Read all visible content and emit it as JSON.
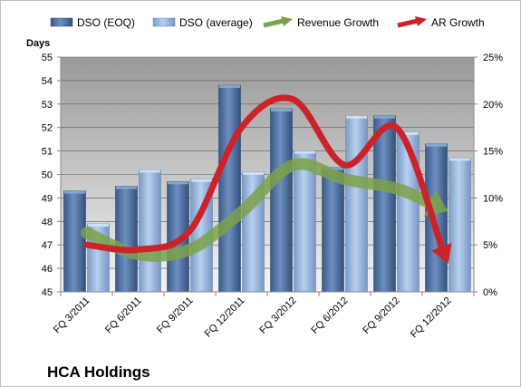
{
  "chart_data": {
    "type": "bar",
    "title": "HCA Holdings",
    "ylabel": "Days",
    "ylim": [
      45,
      55
    ],
    "y2lim": [
      0,
      25
    ],
    "y2_unit": "%",
    "grid": true,
    "legend_placement": "top",
    "categories": [
      "FQ 3/2011",
      "FQ 6/2011",
      "FQ 9/2011",
      "FQ 12/2011",
      "FQ 3/2012",
      "FQ 6/2012",
      "FQ 9/2012",
      "FQ 12/2012"
    ],
    "series": [
      {
        "name": "DSO (EOQ)",
        "type": "bar",
        "axis": "left",
        "color": "#4a6a9a",
        "values": [
          49.3,
          49.5,
          49.7,
          53.8,
          52.8,
          50.3,
          52.5,
          51.3
        ]
      },
      {
        "name": "DSO (average)",
        "type": "bar",
        "axis": "left",
        "color": "#8fb0d8",
        "values": [
          47.9,
          50.2,
          49.8,
          50.1,
          51.0,
          52.5,
          51.8,
          50.7
        ]
      },
      {
        "name": "Revenue Growth",
        "type": "line-arrow",
        "axis": "right",
        "color": "#7ba24a",
        "values": [
          6.3,
          4.0,
          4.5,
          8.5,
          13.5,
          12.0,
          11.0,
          8.6
        ]
      },
      {
        "name": "AR Growth",
        "type": "line-arrow",
        "axis": "right",
        "color": "#cc2229",
        "values": [
          5.0,
          4.5,
          6.5,
          17.5,
          20.5,
          13.5,
          17.5,
          3.0
        ]
      }
    ]
  }
}
